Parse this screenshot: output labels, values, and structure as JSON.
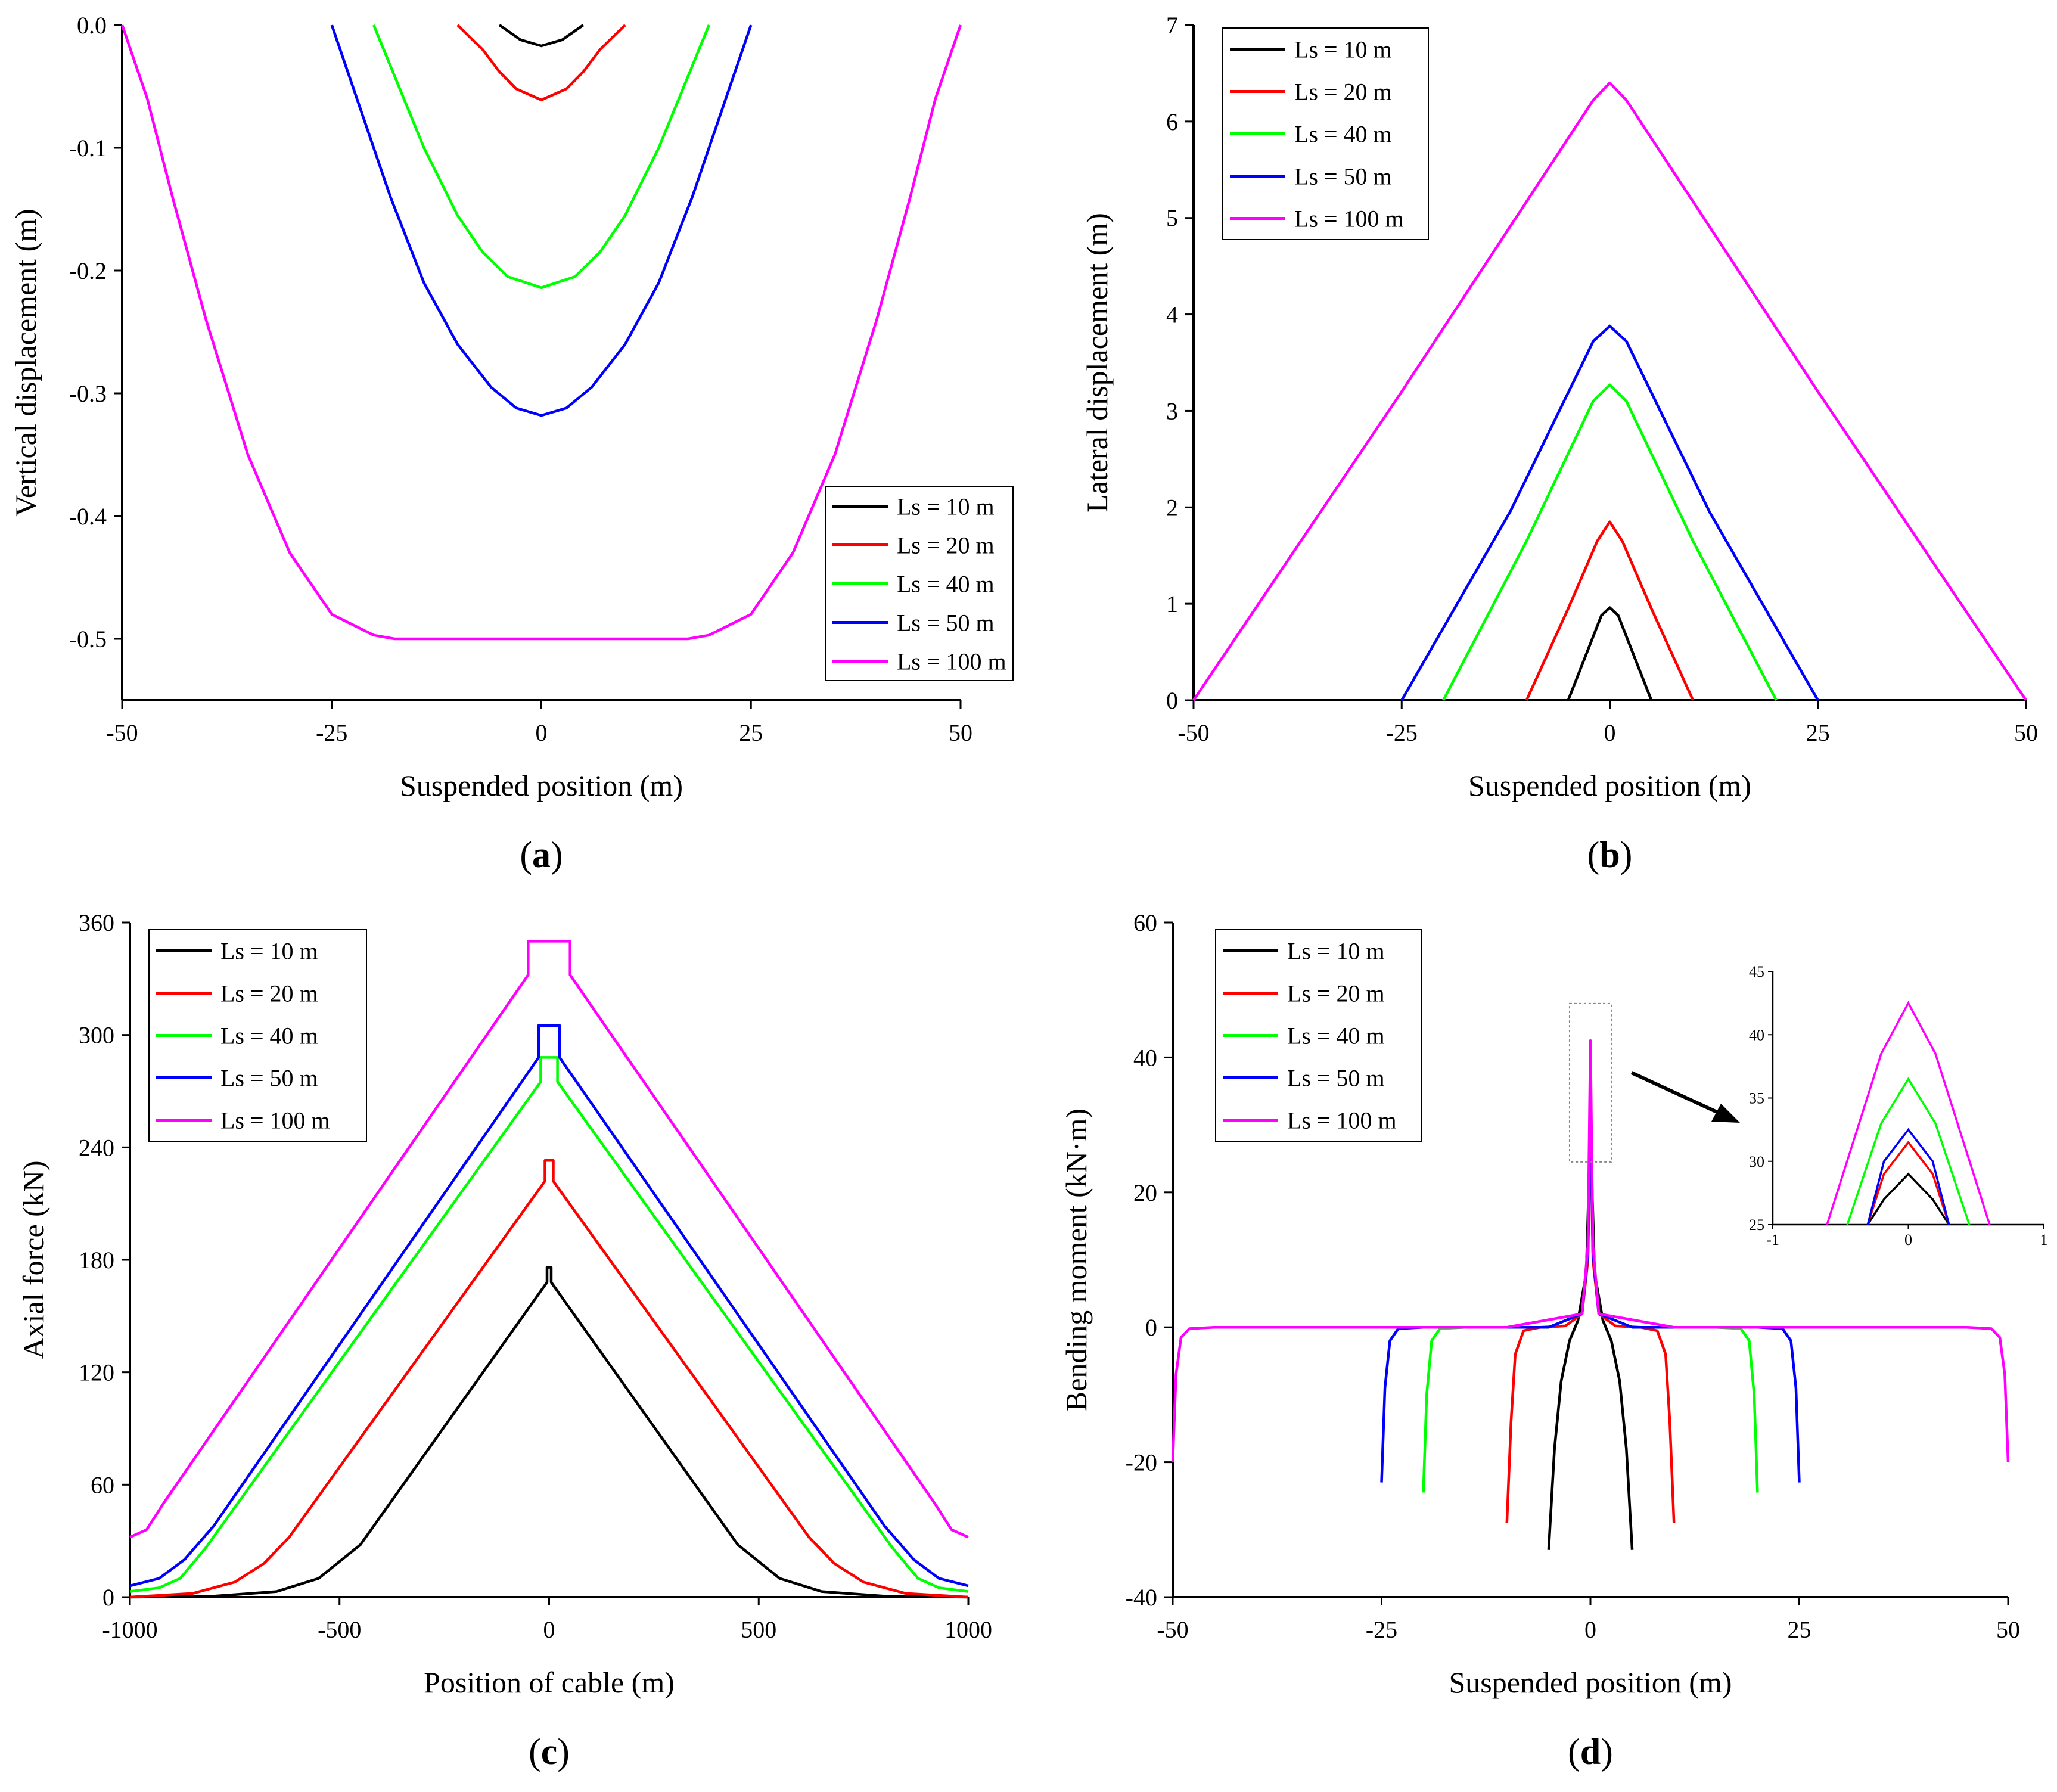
{
  "chart_data": [
    {
      "panel": "(a)",
      "type": "line",
      "xlabel": "Suspended position (m)",
      "ylabel": "Vertical displacement (m)",
      "xlim": [
        -50,
        50
      ],
      "ylim": [
        -0.55,
        0
      ],
      "xticks": [
        -50,
        -25,
        0,
        25,
        50
      ],
      "yticks": [
        0,
        -0.1,
        -0.2,
        -0.3,
        -0.4,
        -0.5
      ],
      "ytick_labels": [
        "0.0",
        "-0.1",
        "-0.2",
        "-0.3",
        "-0.4",
        "-0.5"
      ],
      "legend_position": "lower-right",
      "series": [
        {
          "name": "Ls = 10 m",
          "color": "#000000",
          "x": [
            -5,
            -2.5,
            0,
            2.5,
            5
          ],
          "y": [
            0,
            -0.012,
            -0.017,
            -0.012,
            0
          ]
        },
        {
          "name": "Ls = 20 m",
          "color": "#ff0000",
          "x": [
            -10,
            -7,
            -5,
            -3,
            0,
            3,
            5,
            7,
            10
          ],
          "y": [
            0,
            -0.02,
            -0.038,
            -0.052,
            -0.061,
            -0.052,
            -0.038,
            -0.02,
            0
          ]
        },
        {
          "name": "Ls = 40 m",
          "color": "#00ff00",
          "x": [
            -20,
            -17,
            -14,
            -10,
            -7,
            -4,
            0,
            4,
            7,
            10,
            14,
            17,
            20
          ],
          "y": [
            0,
            -0.05,
            -0.1,
            -0.155,
            -0.185,
            -0.205,
            -0.214,
            -0.205,
            -0.185,
            -0.155,
            -0.1,
            -0.05,
            0
          ]
        },
        {
          "name": "Ls = 50 m",
          "color": "#0000ff",
          "x": [
            -25,
            -22,
            -18,
            -14,
            -10,
            -6,
            -3,
            0,
            3,
            6,
            10,
            14,
            18,
            22,
            25
          ],
          "y": [
            0,
            -0.06,
            -0.14,
            -0.21,
            -0.26,
            -0.295,
            -0.312,
            -0.318,
            -0.312,
            -0.295,
            -0.26,
            -0.21,
            -0.14,
            -0.06,
            0
          ]
        },
        {
          "name": "Ls = 100 m",
          "color": "#ff00ff",
          "x": [
            -50,
            -47,
            -44,
            -40,
            -35,
            -30,
            -25,
            -20,
            -17.5,
            0,
            17.5,
            20,
            25,
            30,
            35,
            40,
            44,
            47,
            50
          ],
          "y": [
            0,
            -0.06,
            -0.14,
            -0.24,
            -0.35,
            -0.43,
            -0.48,
            -0.497,
            -0.5,
            -0.5,
            -0.5,
            -0.497,
            -0.48,
            -0.43,
            -0.35,
            -0.24,
            -0.14,
            -0.06,
            0
          ]
        }
      ]
    },
    {
      "panel": "(b)",
      "type": "line",
      "xlabel": "Suspended position (m)",
      "ylabel": "Lateral displacement (m)",
      "xlim": [
        -50,
        50
      ],
      "ylim": [
        0,
        7
      ],
      "xticks": [
        -50,
        -25,
        0,
        25,
        50
      ],
      "yticks": [
        0,
        1,
        2,
        3,
        4,
        5,
        6,
        7
      ],
      "ytick_labels": [
        "0",
        "1",
        "2",
        "3",
        "4",
        "5",
        "6",
        "7"
      ],
      "legend_position": "upper-left",
      "series": [
        {
          "name": "Ls = 10 m",
          "color": "#000000",
          "x": [
            -5,
            -2.5,
            -1,
            0,
            1,
            2.5,
            5
          ],
          "y": [
            0,
            0.55,
            0.88,
            0.96,
            0.88,
            0.55,
            0
          ]
        },
        {
          "name": "Ls = 20 m",
          "color": "#ff0000",
          "x": [
            -10,
            -5,
            -1.5,
            0,
            1.5,
            5,
            10
          ],
          "y": [
            0,
            0.95,
            1.65,
            1.85,
            1.65,
            0.95,
            0
          ]
        },
        {
          "name": "Ls = 40 m",
          "color": "#00ff00",
          "x": [
            -20,
            -10,
            -2,
            0,
            2,
            10,
            20
          ],
          "y": [
            0,
            1.65,
            3.1,
            3.27,
            3.1,
            1.65,
            0
          ]
        },
        {
          "name": "Ls = 50 m",
          "color": "#0000ff",
          "x": [
            -25,
            -12,
            -2,
            0,
            2,
            12,
            25
          ],
          "y": [
            0,
            1.95,
            3.72,
            3.88,
            3.72,
            1.95,
            0
          ]
        },
        {
          "name": "Ls = 100 m",
          "color": "#ff00ff",
          "x": [
            -50,
            -25,
            -2,
            0,
            2,
            25,
            50
          ],
          "y": [
            0,
            3.2,
            6.22,
            6.4,
            6.22,
            3.2,
            0
          ]
        }
      ]
    },
    {
      "panel": "(c)",
      "type": "line",
      "xlabel": "Position of cable (m)",
      "ylabel": "Axial force (kN)",
      "xlim": [
        -1000,
        1000
      ],
      "ylim": [
        0,
        360
      ],
      "xticks": [
        -1000,
        -500,
        0,
        500,
        1000
      ],
      "yticks": [
        0,
        60,
        120,
        180,
        240,
        300,
        360
      ],
      "ytick_labels": [
        "0",
        "60",
        "120",
        "180",
        "240",
        "300",
        "360"
      ],
      "legend_position": "upper-left",
      "series": [
        {
          "name": "Ls = 10 m",
          "color": "#000000",
          "x": [
            -1000,
            -800,
            -650,
            -550,
            -450,
            -5,
            -5,
            5,
            5,
            450,
            550,
            650,
            800,
            1000
          ],
          "y": [
            0,
            0.5,
            3,
            10,
            28,
            168,
            176,
            176,
            168,
            28,
            10,
            3,
            0.5,
            0
          ]
        },
        {
          "name": "Ls = 20 m",
          "color": "#ff0000",
          "x": [
            -1000,
            -850,
            -750,
            -680,
            -620,
            -10,
            -10,
            10,
            10,
            620,
            680,
            750,
            850,
            1000
          ],
          "y": [
            0,
            2,
            8,
            18,
            32,
            222,
            233,
            233,
            222,
            32,
            18,
            8,
            2,
            0
          ]
        },
        {
          "name": "Ls = 40 m",
          "color": "#00ff00",
          "x": [
            -1000,
            -930,
            -880,
            -820,
            -20,
            -20,
            20,
            20,
            820,
            880,
            930,
            1000
          ],
          "y": [
            3,
            5,
            10,
            26,
            275,
            288,
            288,
            275,
            26,
            10,
            5,
            3
          ]
        },
        {
          "name": "Ls = 50 m",
          "color": "#0000ff",
          "x": [
            -1000,
            -930,
            -870,
            -800,
            -25,
            -25,
            25,
            25,
            800,
            870,
            930,
            1000
          ],
          "y": [
            6,
            10,
            20,
            38,
            288,
            305,
            305,
            288,
            38,
            20,
            10,
            6
          ]
        },
        {
          "name": "Ls = 100 m",
          "color": "#ff00ff",
          "x": [
            -1000,
            -960,
            -920,
            -50,
            -50,
            50,
            50,
            920,
            960,
            1000
          ],
          "y": [
            32,
            36,
            50,
            332,
            350,
            350,
            332,
            50,
            36,
            32
          ]
        }
      ]
    },
    {
      "panel": "(d)",
      "type": "line",
      "xlabel": "Suspended position (m)",
      "ylabel": "Bending moment (kN·m)",
      "xlim": [
        -50,
        50
      ],
      "ylim": [
        -40,
        60
      ],
      "xticks": [
        -50,
        -25,
        0,
        25,
        50
      ],
      "yticks": [
        -40,
        -20,
        0,
        20,
        40,
        60
      ],
      "ytick_labels": [
        "-40",
        "-20",
        "0",
        "20",
        "40",
        "60"
      ],
      "legend_position": "upper-left",
      "series": [
        {
          "name": "Ls = 10 m",
          "color": "#000000",
          "x": [
            -5,
            -4.3,
            -3.5,
            -2.5,
            -1.5,
            -0.5,
            0,
            0.5,
            1.5,
            2.5,
            3.5,
            4.3,
            5
          ],
          "y": [
            -33,
            -18,
            -8,
            -2,
            1,
            8,
            29,
            8,
            1,
            -2,
            -8,
            -18,
            -33
          ]
        },
        {
          "name": "Ls = 20 m",
          "color": "#ff0000",
          "x": [
            -10,
            -9.5,
            -9,
            -8,
            -6,
            -3,
            -1,
            -0.3,
            0,
            0.3,
            1,
            3,
            6,
            8,
            9,
            9.5,
            10
          ],
          "y": [
            -29,
            -14,
            -4,
            -0.5,
            0,
            0.2,
            2,
            10,
            31.5,
            10,
            2,
            0.2,
            0,
            -0.5,
            -4,
            -14,
            -29
          ]
        },
        {
          "name": "Ls = 40 m",
          "color": "#00ff00",
          "x": [
            -20,
            -19.6,
            -19,
            -18,
            -15,
            -5,
            -1,
            -0.3,
            0,
            0.3,
            1,
            5,
            15,
            18,
            19,
            19.6,
            20
          ],
          "y": [
            -24.5,
            -10,
            -2,
            -0.2,
            0,
            0,
            2,
            12,
            36.5,
            12,
            2,
            0,
            0,
            -0.2,
            -2,
            -10,
            -24.5
          ]
        },
        {
          "name": "Ls = 50 m",
          "color": "#0000ff",
          "x": [
            -25,
            -24.6,
            -24,
            -23,
            -20,
            -5,
            -1,
            -0.3,
            0,
            0.3,
            1,
            5,
            20,
            23,
            24,
            24.6,
            25
          ],
          "y": [
            -23,
            -9,
            -2,
            -0.2,
            0,
            0,
            2,
            11,
            32.5,
            11,
            2,
            0,
            0,
            -0.2,
            -2,
            -9,
            -23
          ]
        },
        {
          "name": "Ls = 100 m",
          "color": "#ff00ff",
          "x": [
            -50,
            -49.6,
            -49,
            -48,
            -45,
            -10,
            -1,
            -0.3,
            0,
            0.3,
            1,
            10,
            45,
            48,
            49,
            49.6,
            50
          ],
          "y": [
            -20,
            -7,
            -1.5,
            -0.2,
            0,
            0,
            2,
            12,
            42.5,
            12,
            2,
            0,
            0,
            -0.2,
            -1.5,
            -7,
            -20
          ]
        }
      ],
      "inset": {
        "xlim": [
          -1,
          1
        ],
        "ylim": [
          25,
          45
        ],
        "xticks": [
          -1,
          0,
          1
        ],
        "yticks": [
          25,
          30,
          35,
          40,
          45
        ],
        "series": [
          {
            "color": "#000000",
            "x": [
              -0.3,
              -0.18,
              0,
              0.18,
              0.3
            ],
            "y": [
              25,
              27,
              29,
              27,
              25
            ]
          },
          {
            "color": "#ff0000",
            "x": [
              -0.3,
              -0.18,
              0,
              0.18,
              0.3
            ],
            "y": [
              25,
              29,
              31.5,
              29,
              25
            ]
          },
          {
            "color": "#0000ff",
            "x": [
              -0.3,
              -0.18,
              0,
              0.18,
              0.3
            ],
            "y": [
              25,
              30,
              32.5,
              30,
              25
            ]
          },
          {
            "color": "#00ff00",
            "x": [
              -0.45,
              -0.2,
              0,
              0.2,
              0.45
            ],
            "y": [
              25,
              33,
              36.5,
              33,
              25
            ]
          },
          {
            "color": "#ff00ff",
            "x": [
              -0.6,
              -0.2,
              0,
              0.2,
              0.6
            ],
            "y": [
              25,
              38.5,
              42.5,
              38.5,
              25
            ]
          }
        ]
      }
    }
  ]
}
